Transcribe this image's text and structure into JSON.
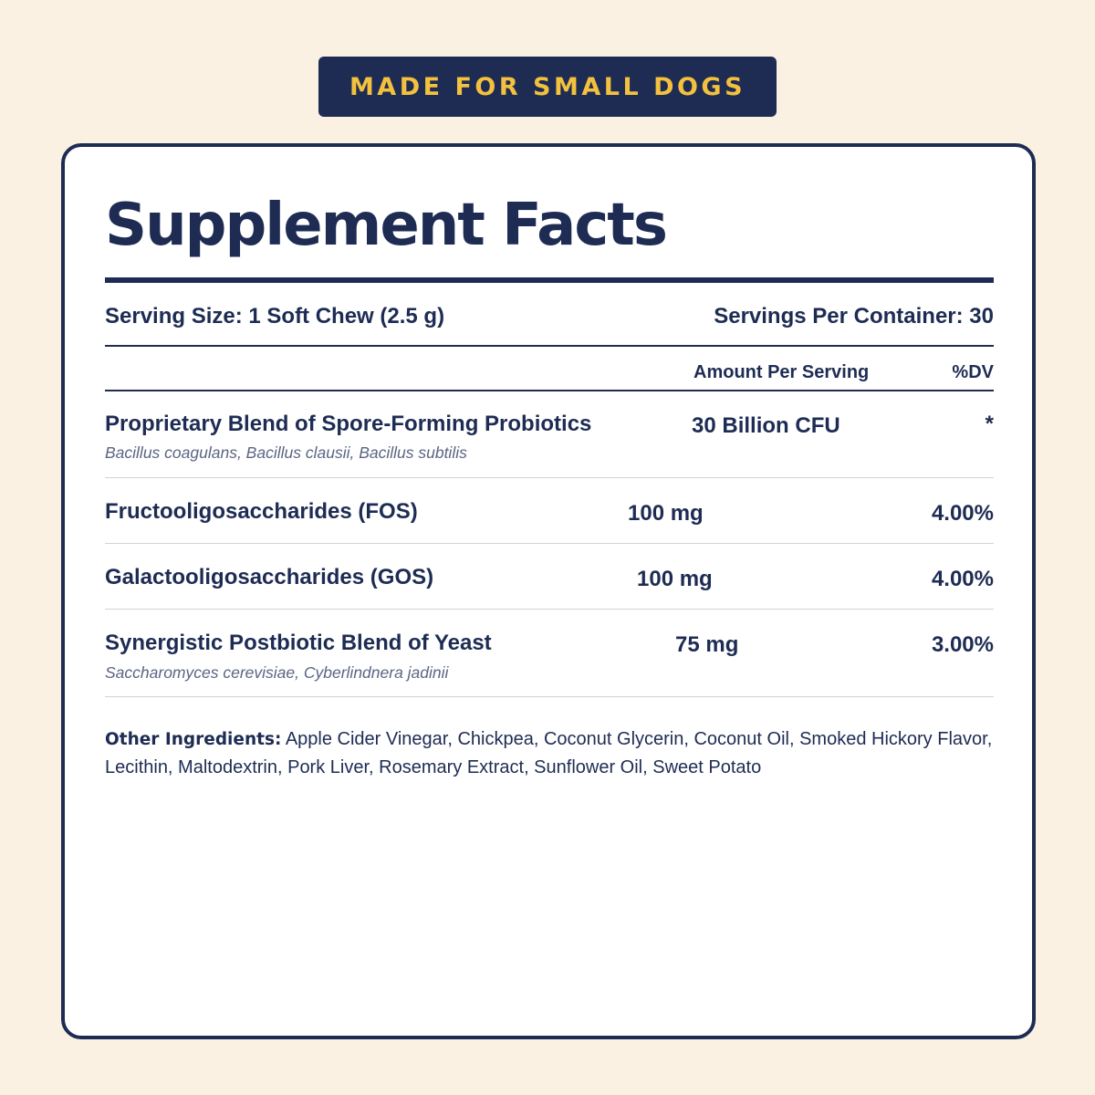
{
  "badge": {
    "text": "MADE FOR SMALL DOGS"
  },
  "facts": {
    "title": "Supplement Facts",
    "serving_size": "Serving Size: 1 Soft Chew (2.5 g)",
    "servings_per_container": "Servings Per Container: 30",
    "columns": {
      "amount": "Amount Per Serving",
      "dv": "%DV"
    },
    "rows": [
      {
        "name": "Proprietary Blend of Spore-Forming Probiotics",
        "sub": "Bacillus coagulans, Bacillus clausii, Bacillus subtilis",
        "amount": "30 Billion CFU",
        "dv": "*"
      },
      {
        "name": "Fructooligosaccharides (FOS)",
        "amount": "100 mg",
        "dv": "4.00%"
      },
      {
        "name": "Galactooligosaccharides (GOS)",
        "amount": "100 mg",
        "dv": "4.00%"
      },
      {
        "name": "Synergistic Postbiotic Blend of Yeast",
        "sub": "Saccharomyces cerevisiae, Cyberlindnera jadinii",
        "amount": "75 mg",
        "dv": "3.00%"
      }
    ],
    "other_ingredients": {
      "label": "Other Ingredients:",
      "text": " Apple Cider Vinegar, Chickpea, Coconut Glycerin, Coconut Oil, Smoked Hickory Flavor, Lecithin, Maltodextrin, Pork Liver, Rosemary Extract, Sunflower Oil, Sweet Potato"
    }
  },
  "colors": {
    "background": "#faf1e3",
    "navy": "#1e2c54",
    "badge_text": "#f3c13d",
    "card": "#ffffff",
    "row_divider": "#d3d3d3",
    "latin_text": "#5b6583"
  }
}
